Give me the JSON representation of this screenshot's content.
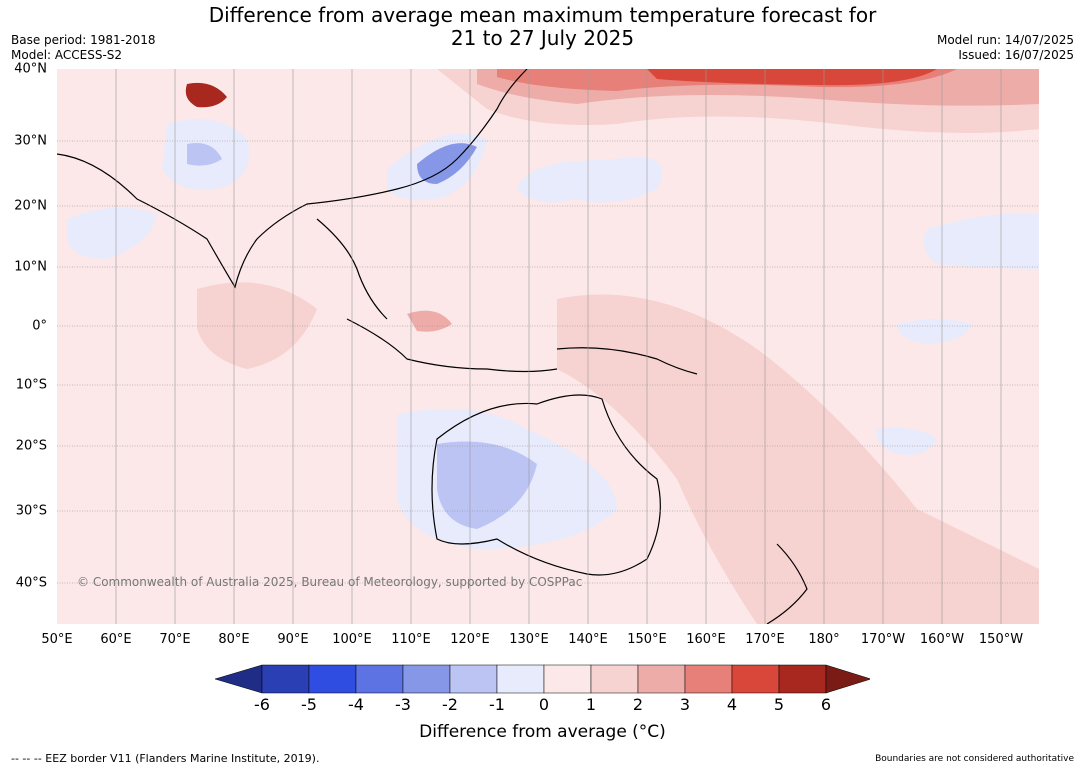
{
  "title_line1": "Difference from average mean maximum temperature forecast for",
  "title_line2": "21 to 27 July 2025",
  "meta_left": [
    "Base period: 1981-2018",
    "Model: ACCESS-S2"
  ],
  "meta_right": [
    "Model run: 14/07/2025",
    "Issued: 16/07/2025"
  ],
  "longitude_labels": [
    "50°E",
    "60°E",
    "70°E",
    "80°E",
    "90°E",
    "100°E",
    "110°E",
    "120°E",
    "130°E",
    "140°E",
    "150°E",
    "160°E",
    "170°E",
    "180°",
    "170°W",
    "160°W",
    "150°W"
  ],
  "latitude_labels": [
    "40°N",
    "30°N",
    "20°N",
    "10°N",
    "0°",
    "10°S",
    "20°S",
    "30°S",
    "40°S"
  ],
  "copyright": "© Commonwealth of Australia 2025, Bureau of Meteorology, supported by COSPPac",
  "colorbar": {
    "ticks": [
      "-6",
      "-5",
      "-4",
      "-3",
      "-2",
      "-1",
      "0",
      "1",
      "2",
      "3",
      "4",
      "5",
      "6"
    ],
    "colors": [
      "#1f2d86",
      "#2a3fb3",
      "#2f4de0",
      "#5d73e3",
      "#8797e8",
      "#bcc4f4",
      "#e8ebfc",
      "#fce8e8",
      "#f6d2d0",
      "#eeaca9",
      "#e78079",
      "#d9473b",
      "#a8271f",
      "#7a1b15"
    ],
    "label": "Difference from average (°C)"
  },
  "footer_left": "--  --  -- EEZ border V11 (Flanders Marine Institute, 2019).",
  "footer_right": "Boundaries are not considered authoritative"
}
